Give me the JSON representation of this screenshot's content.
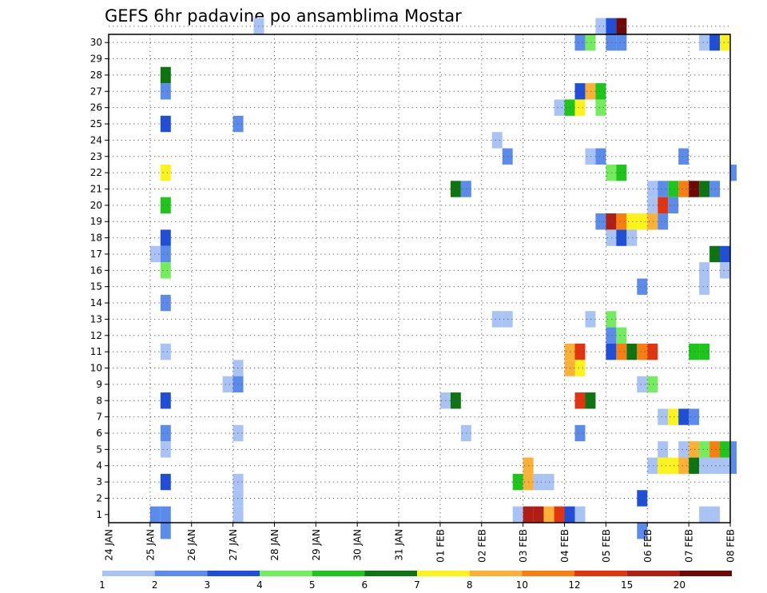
{
  "chart_data": {
    "type": "heatmap",
    "title": "GEFS 6hr padavine po ansamblima Mostar",
    "x_tick_labels": [
      "24 JAN",
      "25 JAN",
      "26 JAN",
      "27 JAN",
      "28 JAN",
      "29 JAN",
      "30 JAN",
      "31 JAN",
      "01 FEB",
      "02 FEB",
      "03 FEB",
      "04 FEB",
      "05 FEB",
      "06 FEB",
      "07 FEB",
      "08 FEB"
    ],
    "x_range_steps": [
      0,
      60
    ],
    "y_tick_labels": [
      "1",
      "2",
      "3",
      "4",
      "5",
      "6",
      "7",
      "8",
      "9",
      "10",
      "11",
      "12",
      "13",
      "14",
      "15",
      "16",
      "17",
      "18",
      "19",
      "20",
      "21",
      "22",
      "23",
      "24",
      "25",
      "26",
      "27",
      "28",
      "29",
      "30"
    ],
    "y_range": [
      0,
      30
    ],
    "grid": true,
    "colorbar": {
      "labels": [
        "1",
        "2",
        "3",
        "4",
        "5",
        "6",
        "7",
        "8",
        "10",
        "12",
        "15",
        "20"
      ],
      "colors": [
        "#a9c3f5",
        "#5b8ceb",
        "#1f4fd8",
        "#73ec5e",
        "#1dc51d",
        "#0e7412",
        "#fbf31a",
        "#fbb135",
        "#f77e10",
        "#e2340f",
        "#b01e14",
        "#6b0a06"
      ]
    },
    "cells": [
      [
        14,
        30,
        0
      ],
      [
        47,
        30,
        0
      ],
      [
        48,
        30,
        2
      ],
      [
        49,
        30,
        11
      ],
      [
        45,
        29,
        1
      ],
      [
        46,
        29,
        3
      ],
      [
        48,
        29,
        1
      ],
      [
        49,
        29,
        1
      ],
      [
        57,
        29,
        0
      ],
      [
        58,
        29,
        2
      ],
      [
        59,
        29,
        6
      ],
      [
        5,
        27,
        5
      ],
      [
        5,
        26,
        1
      ],
      [
        45,
        26,
        2
      ],
      [
        46,
        26,
        7
      ],
      [
        47,
        26,
        4
      ],
      [
        43,
        25,
        0
      ],
      [
        44,
        25,
        4
      ],
      [
        45,
        25,
        6
      ],
      [
        47,
        25,
        3
      ],
      [
        5,
        24,
        2
      ],
      [
        12,
        24,
        1
      ],
      [
        37,
        23,
        0
      ],
      [
        38,
        22,
        1
      ],
      [
        46,
        22,
        0
      ],
      [
        47,
        22,
        1
      ],
      [
        55,
        22,
        1
      ],
      [
        5,
        21,
        6
      ],
      [
        48,
        21,
        3
      ],
      [
        49,
        21,
        4
      ],
      [
        60,
        21,
        1
      ],
      [
        33,
        20,
        5
      ],
      [
        34,
        20,
        1
      ],
      [
        52,
        20,
        0
      ],
      [
        53,
        20,
        1
      ],
      [
        54,
        20,
        4
      ],
      [
        55,
        20,
        8
      ],
      [
        56,
        20,
        11
      ],
      [
        57,
        20,
        5
      ],
      [
        58,
        20,
        1
      ],
      [
        5,
        19,
        4
      ],
      [
        52,
        19,
        0
      ],
      [
        53,
        19,
        9
      ],
      [
        54,
        19,
        1
      ],
      [
        47,
        18,
        1
      ],
      [
        48,
        18,
        10
      ],
      [
        49,
        18,
        8
      ],
      [
        50,
        18,
        6
      ],
      [
        51,
        18,
        6
      ],
      [
        52,
        18,
        7
      ],
      [
        53,
        18,
        1
      ],
      [
        5,
        17,
        2
      ],
      [
        48,
        17,
        0
      ],
      [
        49,
        17,
        2
      ],
      [
        50,
        17,
        0
      ],
      [
        4,
        16,
        0
      ],
      [
        5,
        16,
        1
      ],
      [
        58,
        16,
        5
      ],
      [
        59,
        16,
        2
      ],
      [
        5,
        15,
        3
      ],
      [
        57,
        15,
        0
      ],
      [
        59,
        15,
        0
      ],
      [
        51,
        14,
        1
      ],
      [
        57,
        14,
        0
      ],
      [
        5,
        13,
        1
      ],
      [
        37,
        12,
        0
      ],
      [
        38,
        12,
        0
      ],
      [
        46,
        12,
        0
      ],
      [
        48,
        12,
        3
      ],
      [
        48,
        11,
        1
      ],
      [
        49,
        11,
        3
      ],
      [
        5,
        10,
        0
      ],
      [
        44,
        10,
        7
      ],
      [
        45,
        10,
        9
      ],
      [
        48,
        10,
        2
      ],
      [
        49,
        10,
        8
      ],
      [
        50,
        10,
        5
      ],
      [
        51,
        10,
        8
      ],
      [
        52,
        10,
        9
      ],
      [
        56,
        10,
        4
      ],
      [
        57,
        10,
        4
      ],
      [
        12,
        9,
        0
      ],
      [
        44,
        9,
        7
      ],
      [
        45,
        9,
        6
      ],
      [
        11,
        8,
        0
      ],
      [
        12,
        8,
        1
      ],
      [
        51,
        8,
        0
      ],
      [
        52,
        8,
        3
      ],
      [
        5,
        7,
        2
      ],
      [
        32,
        7,
        0
      ],
      [
        33,
        7,
        5
      ],
      [
        45,
        7,
        9
      ],
      [
        46,
        7,
        5
      ],
      [
        53,
        6,
        0
      ],
      [
        54,
        6,
        6
      ],
      [
        55,
        6,
        2
      ],
      [
        56,
        6,
        1
      ],
      [
        5,
        5,
        1
      ],
      [
        12,
        5,
        0
      ],
      [
        34,
        5,
        0
      ],
      [
        45,
        5,
        1
      ],
      [
        5,
        4,
        0
      ],
      [
        53,
        4,
        0
      ],
      [
        55,
        4,
        0
      ],
      [
        56,
        4,
        7
      ],
      [
        57,
        4,
        3
      ],
      [
        58,
        4,
        8
      ],
      [
        59,
        4,
        4
      ],
      [
        60,
        4,
        1
      ],
      [
        40,
        3,
        7
      ],
      [
        52,
        3,
        0
      ],
      [
        53,
        3,
        6
      ],
      [
        54,
        3,
        6
      ],
      [
        55,
        3,
        7
      ],
      [
        56,
        3,
        5
      ],
      [
        57,
        3,
        0
      ],
      [
        58,
        3,
        0
      ],
      [
        59,
        3,
        0
      ],
      [
        60,
        3,
        1
      ],
      [
        5,
        2,
        2
      ],
      [
        12,
        2,
        0
      ],
      [
        39,
        2,
        4
      ],
      [
        40,
        2,
        7
      ],
      [
        41,
        2,
        0
      ],
      [
        42,
        2,
        0
      ],
      [
        12,
        1,
        0
      ],
      [
        51,
        1,
        2
      ],
      [
        4,
        0,
        1
      ],
      [
        5,
        0,
        1
      ],
      [
        12,
        0,
        0
      ],
      [
        39,
        0,
        0
      ],
      [
        40,
        0,
        10
      ],
      [
        41,
        0,
        10
      ],
      [
        42,
        0,
        7
      ],
      [
        43,
        0,
        9
      ],
      [
        44,
        0,
        2
      ],
      [
        45,
        0,
        0
      ],
      [
        57,
        0,
        0
      ],
      [
        58,
        0,
        0
      ],
      [
        5,
        -1,
        1
      ],
      [
        51,
        -1,
        1
      ]
    ]
  }
}
